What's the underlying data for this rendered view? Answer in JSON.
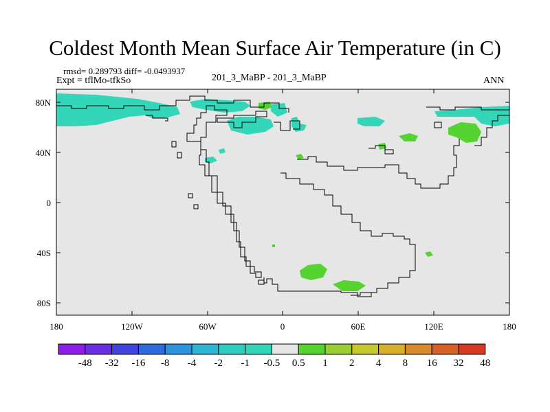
{
  "figure": {
    "title": "Coldest Month Mean Surface Air Temperature (in C)",
    "stats": "rmsd= 0.289793  diff= -0.0493937",
    "expt": "Expt = tflMo-tfkSo",
    "subtitle": "201_3_MaBP - 201_3_MaBP",
    "season": "ANN"
  },
  "axes": {
    "y_ticks": [
      "80N",
      "40N",
      "0",
      "40S",
      "80S"
    ],
    "x_ticks": [
      "180",
      "120W",
      "60W",
      "0",
      "60E",
      "120E",
      "180"
    ]
  },
  "colors": {
    "ocean_bg": "#e6e6e6",
    "neg_0_5_to_1": "#33d6b8",
    "pos_0_5_to_1": "#55d431",
    "coast": "#000000"
  },
  "colorbar": {
    "colors": [
      "#8c1ee6",
      "#6a2ee0",
      "#3f44df",
      "#2e6bdd",
      "#2e93dc",
      "#2eb5d3",
      "#2ecdc0",
      "#33d6b8",
      "#e6e6e6",
      "#55d431",
      "#9acd32",
      "#c5c92e",
      "#d6b02c",
      "#d68a2a",
      "#d6602a",
      "#d33a1f"
    ],
    "labels": [
      "-48",
      "-32",
      "-16",
      "-8",
      "-4",
      "-2",
      "-1",
      "-0.5",
      "0.5",
      "1",
      "2",
      "4",
      "8",
      "16",
      "32",
      "48"
    ]
  }
}
